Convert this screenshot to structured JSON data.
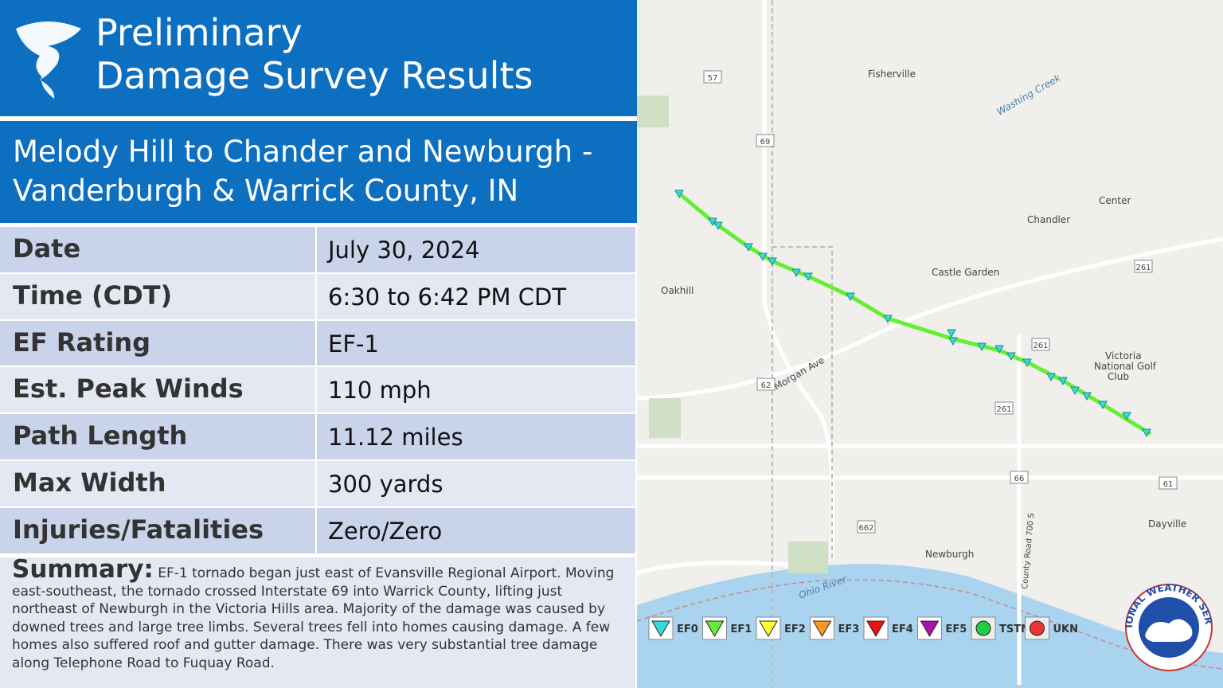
{
  "header": {
    "title_line1": "Preliminary",
    "title_line2": "Damage Survey Results"
  },
  "subtitle": {
    "line1": "Melody Hill to Chander and Newburgh -",
    "line2": "Vanderburgh & Warrick County, IN"
  },
  "table": {
    "rows": [
      [
        "Date",
        "July 30, 2024"
      ],
      [
        "Time (CDT)",
        "6:30 to 6:42 PM CDT"
      ],
      [
        "EF Rating",
        "EF-1"
      ],
      [
        "Est. Peak Winds",
        "110 mph"
      ],
      [
        "Path Length",
        "11.12 miles"
      ],
      [
        "Max Width",
        "300 yards"
      ],
      [
        "Injuries/Fatalities",
        "Zero/Zero"
      ]
    ]
  },
  "summary": {
    "label": "Summary:",
    "text": "EF-1 tornado began just east of Evansville Regional Airport. Moving east-southeast, the tornado crossed Interstate 69 into Warrick County, lifting just northeast of Newburgh in the Victoria Hills area. Majority of the damage was caused by downed trees and large tree limbs. Several trees fell into homes causing damage. A few homes also suffered roof and gutter damage. There was very substantial tree damage along Telephone Road to Fuquay Road."
  },
  "map": {
    "places": [
      "Fisherville",
      "Center",
      "Chandler",
      "Castle Garden",
      "Oakhill",
      "Victoria",
      "National Golf",
      "Club",
      "Dayville",
      "Newburgh"
    ],
    "water": [
      "Ohio River",
      "Washing Creek"
    ],
    "roads": [
      "Morgan Ave",
      "County Road 700 S"
    ],
    "shields": [
      "57",
      "69",
      "62",
      "261",
      "261",
      "261",
      "66",
      "662",
      "61"
    ],
    "legend": [
      "EF0",
      "EF1",
      "EF2",
      "EF3",
      "EF4",
      "EF5",
      "TSTM",
      "UKN"
    ],
    "logo": "NATIONAL WEATHER SERVICE"
  }
}
